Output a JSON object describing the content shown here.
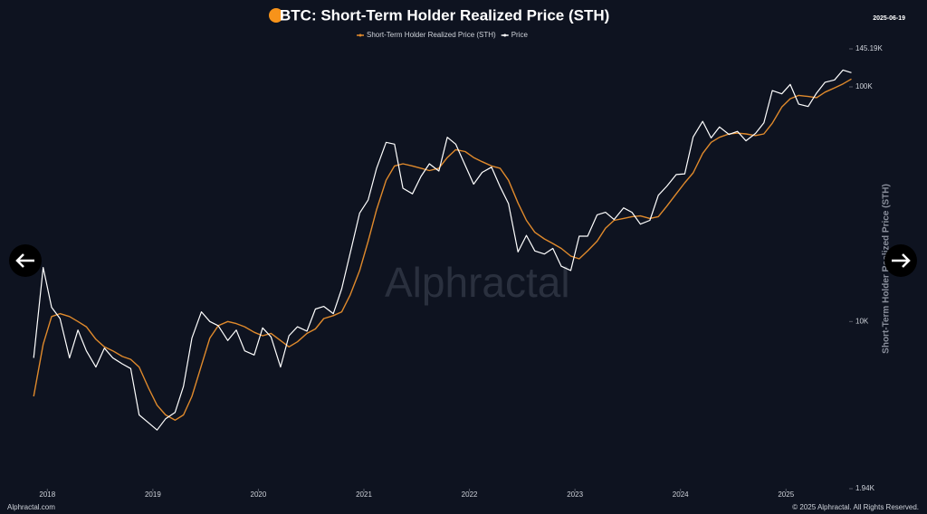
{
  "chart_data": {
    "type": "line",
    "title": "BTC: Short-Term Holder Realized Price (STH)",
    "date": "2025-06-19",
    "watermark": "Alphractal",
    "source": "Alphractal.com",
    "copyright": "© 2025 Alphractal. All Rights Reserved.",
    "y_label": "Short-Term Holder Realized Price (STH)",
    "log_scale": true,
    "xlim": [
      2017.8,
      2025.95
    ],
    "xticks": [
      2018,
      2019,
      2020,
      2021,
      2022,
      2023,
      2024,
      2025
    ],
    "ylim": [
      1940,
      145190
    ],
    "yticks": [
      {
        "value": 1940,
        "label": "1.94K"
      },
      {
        "value": 10000,
        "label": "10K"
      },
      {
        "value": 100000,
        "label": "100K"
      },
      {
        "value": 145190,
        "label": "145.19K"
      }
    ],
    "x": [
      2017.87,
      2017.96,
      2018.04,
      2018.12,
      2018.21,
      2018.29,
      2018.37,
      2018.46,
      2018.54,
      2018.62,
      2018.71,
      2018.79,
      2018.87,
      2018.96,
      2019.04,
      2019.12,
      2019.21,
      2019.29,
      2019.37,
      2019.46,
      2019.54,
      2019.62,
      2019.71,
      2019.79,
      2019.87,
      2019.96,
      2020.04,
      2020.12,
      2020.21,
      2020.29,
      2020.37,
      2020.46,
      2020.54,
      2020.62,
      2020.71,
      2020.79,
      2020.87,
      2020.96,
      2021.04,
      2021.12,
      2021.21,
      2021.29,
      2021.37,
      2021.46,
      2021.54,
      2021.62,
      2021.71,
      2021.79,
      2021.87,
      2021.96,
      2022.04,
      2022.12,
      2022.21,
      2022.29,
      2022.37,
      2022.46,
      2022.54,
      2022.62,
      2022.71,
      2022.79,
      2022.87,
      2022.96,
      2023.04,
      2023.12,
      2023.21,
      2023.29,
      2023.37,
      2023.46,
      2023.54,
      2023.62,
      2023.71,
      2023.79,
      2023.87,
      2023.96,
      2024.04,
      2024.12,
      2024.21,
      2024.29,
      2024.37,
      2024.46,
      2024.54,
      2024.62,
      2024.71,
      2024.79,
      2024.87,
      2024.96,
      2025.04,
      2025.12,
      2025.21,
      2025.29,
      2025.37,
      2025.46,
      2025.54,
      2025.62
    ],
    "series": [
      {
        "name": "Short-Term Holder Realized Price (STH)",
        "color": "#e08a2c",
        "values": [
          4800,
          8000,
          10500,
          10800,
          10500,
          10000,
          9500,
          8400,
          7800,
          7500,
          7100,
          6900,
          6400,
          5200,
          4400,
          4000,
          3800,
          4000,
          4800,
          6500,
          8500,
          9600,
          10000,
          9800,
          9500,
          9000,
          8700,
          8900,
          8300,
          7800,
          8200,
          8900,
          9300,
          10300,
          10600,
          11000,
          13000,
          16500,
          22000,
          30000,
          40000,
          46000,
          47000,
          46000,
          45000,
          44000,
          45000,
          50000,
          54000,
          53000,
          50000,
          48000,
          46000,
          45000,
          40000,
          32000,
          27000,
          24000,
          22500,
          21500,
          20500,
          19000,
          18500,
          20000,
          22000,
          25000,
          27000,
          27500,
          28000,
          28200,
          27500,
          28000,
          31000,
          35000,
          39000,
          43000,
          52000,
          58000,
          61000,
          63000,
          63500,
          63000,
          62000,
          63000,
          70000,
          82000,
          89000,
          92000,
          91000,
          90000,
          95000,
          99000,
          103000,
          108000
        ]
      },
      {
        "name": "Price",
        "color": "#ffffff",
        "values": [
          7000,
          17000,
          11500,
          10300,
          7000,
          9200,
          7500,
          6400,
          7700,
          7000,
          6600,
          6300,
          4000,
          3700,
          3450,
          3850,
          4100,
          5300,
          8500,
          11000,
          10000,
          9600,
          8300,
          9200,
          7500,
          7200,
          9400,
          8600,
          6400,
          8700,
          9500,
          9100,
          11300,
          11600,
          10800,
          13800,
          19600,
          29000,
          33000,
          45000,
          58000,
          57000,
          37000,
          35000,
          41500,
          47000,
          43800,
          61000,
          57000,
          46300,
          38500,
          43200,
          45500,
          37600,
          31800,
          19800,
          23300,
          20000,
          19400,
          20500,
          17200,
          16500,
          23100,
          23100,
          28500,
          29200,
          27200,
          30500,
          29200,
          26000,
          27000,
          34500,
          37700,
          42300,
          42600,
          61200,
          71300,
          60600,
          67500,
          62700,
          64600,
          58900,
          63300,
          70200,
          96400,
          93400,
          102400,
          84400,
          82500,
          94200,
          104600,
          107100,
          118000,
          115000
        ]
      }
    ]
  }
}
